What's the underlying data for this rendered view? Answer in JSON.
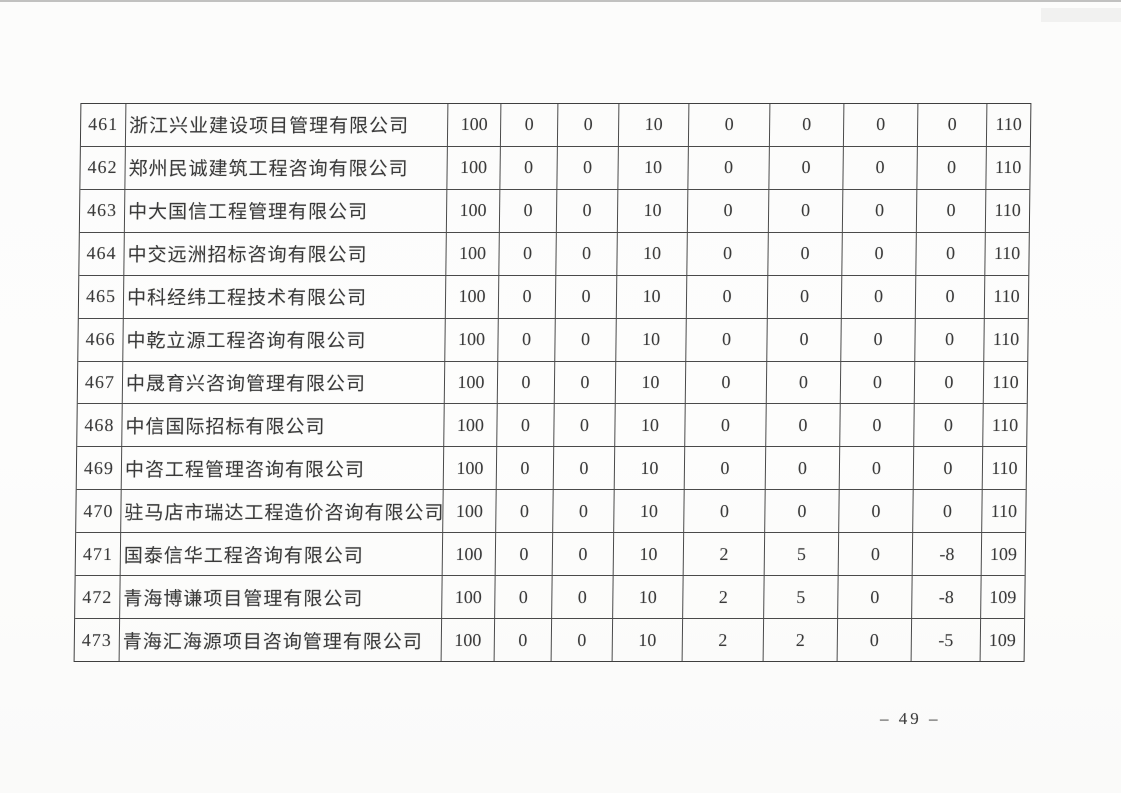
{
  "page": {
    "number_label": "– 49 –"
  },
  "table": {
    "rows": [
      {
        "no": "461",
        "company": "浙江兴业建设项目管理有限公司",
        "scores": [
          "100",
          "0",
          "0",
          "10",
          "0",
          "0",
          "0",
          "0",
          "110"
        ]
      },
      {
        "no": "462",
        "company": "郑州民诚建筑工程咨询有限公司",
        "scores": [
          "100",
          "0",
          "0",
          "10",
          "0",
          "0",
          "0",
          "0",
          "110"
        ]
      },
      {
        "no": "463",
        "company": "中大国信工程管理有限公司",
        "scores": [
          "100",
          "0",
          "0",
          "10",
          "0",
          "0",
          "0",
          "0",
          "110"
        ]
      },
      {
        "no": "464",
        "company": "中交远洲招标咨询有限公司",
        "scores": [
          "100",
          "0",
          "0",
          "10",
          "0",
          "0",
          "0",
          "0",
          "110"
        ]
      },
      {
        "no": "465",
        "company": "中科经纬工程技术有限公司",
        "scores": [
          "100",
          "0",
          "0",
          "10",
          "0",
          "0",
          "0",
          "0",
          "110"
        ]
      },
      {
        "no": "466",
        "company": "中乾立源工程咨询有限公司",
        "scores": [
          "100",
          "0",
          "0",
          "10",
          "0",
          "0",
          "0",
          "0",
          "110"
        ]
      },
      {
        "no": "467",
        "company": "中晟育兴咨询管理有限公司",
        "scores": [
          "100",
          "0",
          "0",
          "10",
          "0",
          "0",
          "0",
          "0",
          "110"
        ]
      },
      {
        "no": "468",
        "company": "中信国际招标有限公司",
        "scores": [
          "100",
          "0",
          "0",
          "10",
          "0",
          "0",
          "0",
          "0",
          "110"
        ]
      },
      {
        "no": "469",
        "company": "中咨工程管理咨询有限公司",
        "scores": [
          "100",
          "0",
          "0",
          "10",
          "0",
          "0",
          "0",
          "0",
          "110"
        ]
      },
      {
        "no": "470",
        "company": "驻马店市瑞达工程造价咨询有限公司",
        "scores": [
          "100",
          "0",
          "0",
          "10",
          "0",
          "0",
          "0",
          "0",
          "110"
        ]
      },
      {
        "no": "471",
        "company": "国泰信华工程咨询有限公司",
        "scores": [
          "100",
          "0",
          "0",
          "10",
          "2",
          "5",
          "0",
          "-8",
          "109"
        ]
      },
      {
        "no": "472",
        "company": "青海博谦项目管理有限公司",
        "scores": [
          "100",
          "0",
          "0",
          "10",
          "2",
          "5",
          "0",
          "-8",
          "109"
        ]
      },
      {
        "no": "473",
        "company": "青海汇海源项目咨询管理有限公司",
        "scores": [
          "100",
          "0",
          "0",
          "10",
          "2",
          "2",
          "0",
          "-5",
          "109"
        ]
      }
    ]
  }
}
